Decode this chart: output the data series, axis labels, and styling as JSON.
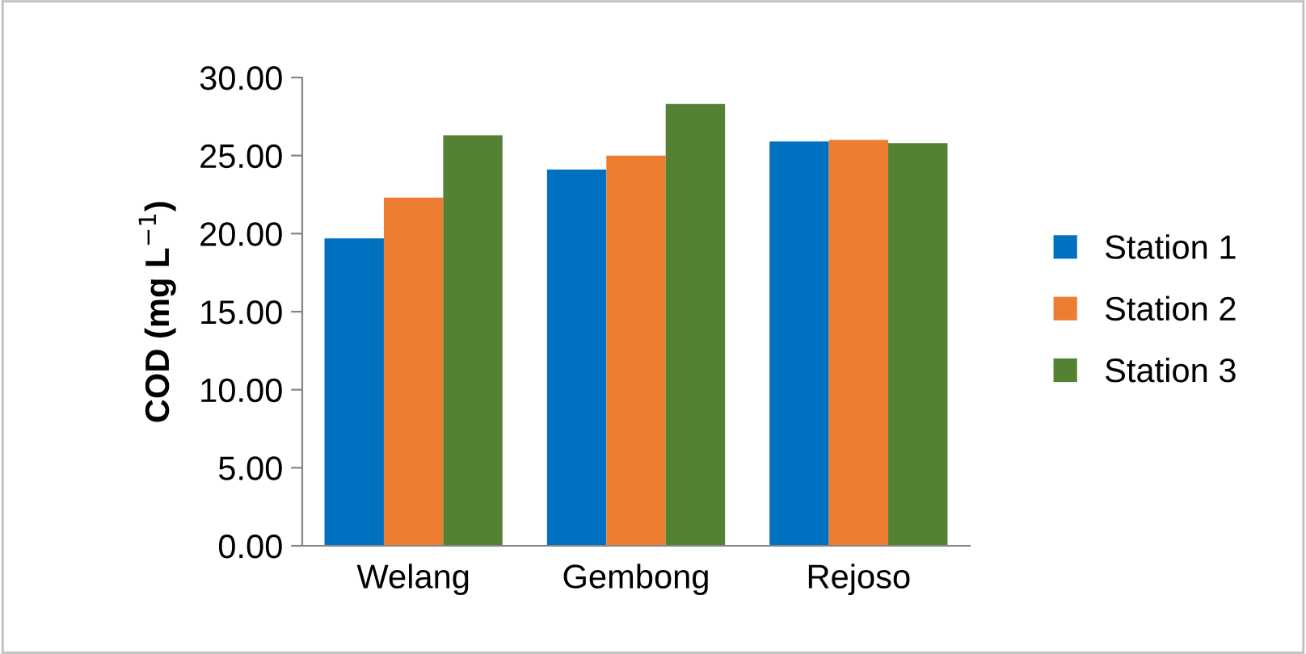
{
  "chart_data": {
    "type": "bar",
    "ylabel": "COD (mg L$^{−1}$)",
    "categories": [
      "Welang",
      "Gembong",
      "Rejoso"
    ],
    "series": [
      {
        "name": "Station 1",
        "color": "#0070c0",
        "values": [
          19.7,
          24.1,
          25.9
        ]
      },
      {
        "name": "Station 2",
        "color": "#ed7d31",
        "values": [
          22.3,
          25.0,
          26.0
        ]
      },
      {
        "name": "Station 3",
        "color": "#548235",
        "values": [
          26.3,
          28.3,
          25.8
        ]
      }
    ],
    "ylim": [
      0,
      30
    ],
    "yticks": [
      {
        "value": 0,
        "label": "0.00"
      },
      {
        "value": 5,
        "label": "5.00"
      },
      {
        "value": 10,
        "label": "10.00"
      },
      {
        "value": 15,
        "label": "15.00"
      },
      {
        "value": 20,
        "label": "20.00"
      },
      {
        "value": 25,
        "label": "25.00"
      },
      {
        "value": 30,
        "label": "30.00"
      }
    ],
    "grid": false,
    "legend": "right"
  }
}
